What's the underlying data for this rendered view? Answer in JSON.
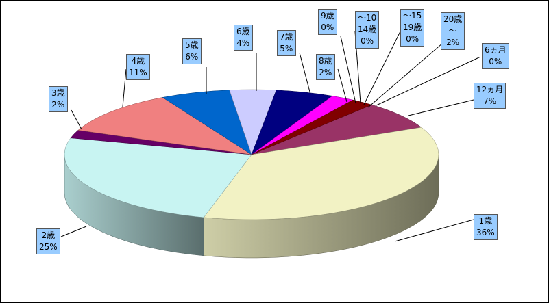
{
  "chart_data": {
    "type": "pie3d",
    "categories": [
      "6ヵ月",
      "12ヵ月",
      "1歳",
      "2歳",
      "3歳",
      "4歳",
      "5歳",
      "6歳",
      "7歳",
      "8歳",
      "9歳",
      "～10\n14歳",
      "～15\n19歳",
      "20歳\n～"
    ],
    "values": [
      0,
      7,
      36,
      25,
      2,
      11,
      6,
      4,
      5,
      2,
      0,
      0,
      0,
      2
    ],
    "value_labels": [
      "0%",
      "7%",
      "36%",
      "25%",
      "2%",
      "11%",
      "6%",
      "4%",
      "5%",
      "2%",
      "0%",
      "0%",
      "0%",
      "2%"
    ],
    "colors": [
      "#9999ff",
      "#993366",
      "#f2f2c4",
      "#c8f4f2",
      "#660066",
      "#f08080",
      "#0066cc",
      "#ccccff",
      "#000080",
      "#ff00ff",
      "#ffff00",
      "#00ffff",
      "#800080",
      "#800000"
    ]
  }
}
